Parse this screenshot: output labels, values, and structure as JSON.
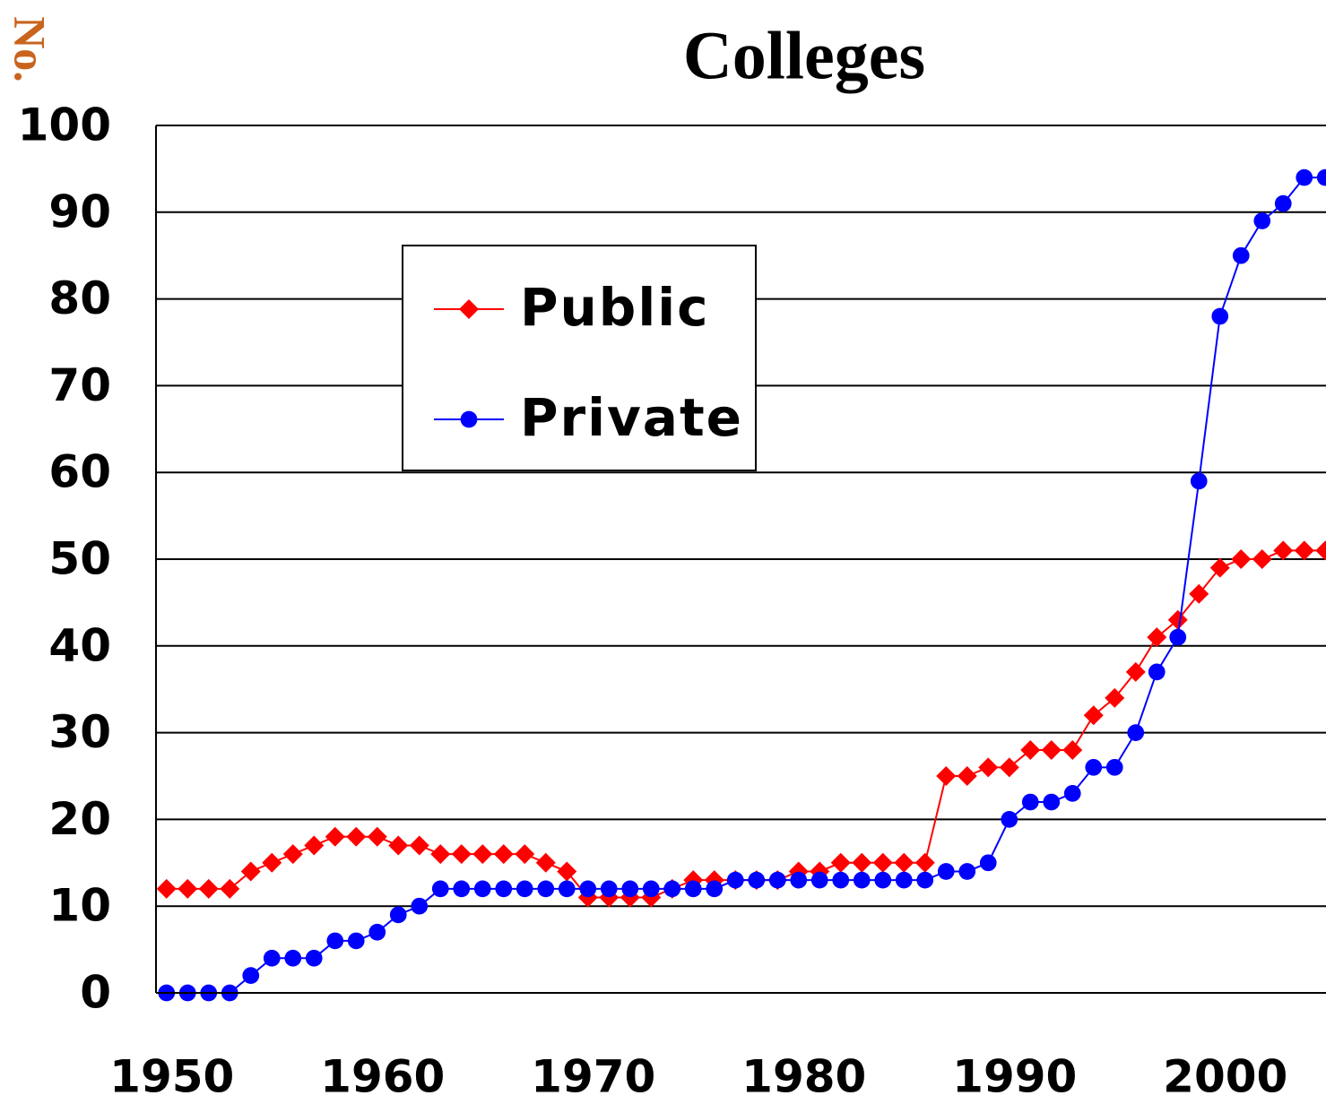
{
  "chart_data": {
    "type": "line",
    "title": "Colleges",
    "y_label": "No.",
    "x": [
      1950,
      1951,
      1952,
      1953,
      1954,
      1955,
      1956,
      1957,
      1958,
      1959,
      1960,
      1961,
      1962,
      1963,
      1964,
      1965,
      1966,
      1967,
      1968,
      1969,
      1970,
      1971,
      1972,
      1973,
      1974,
      1975,
      1976,
      1977,
      1978,
      1979,
      1980,
      1981,
      1982,
      1983,
      1984,
      1985,
      1986,
      1987,
      1988,
      1989,
      1990,
      1991,
      1992,
      1993,
      1994,
      1995,
      1996,
      1997,
      1998,
      1999,
      2000,
      2001,
      2002,
      2003,
      2004,
      2005
    ],
    "series": [
      {
        "name": "Public",
        "color": "#ff0000",
        "marker": "diamond",
        "values": [
          12,
          12,
          12,
          12,
          14,
          15,
          16,
          17,
          18,
          18,
          18,
          17,
          17,
          16,
          16,
          16,
          16,
          16,
          15,
          14,
          11,
          11,
          11,
          11,
          12,
          13,
          13,
          13,
          13,
          13,
          14,
          14,
          15,
          15,
          15,
          15,
          15,
          25,
          25,
          26,
          26,
          28,
          28,
          28,
          32,
          34,
          37,
          41,
          43,
          46,
          49,
          50,
          50,
          51,
          51,
          51
        ]
      },
      {
        "name": "Private",
        "color": "#0000ff",
        "marker": "circle",
        "values": [
          0,
          0,
          0,
          0,
          2,
          4,
          4,
          4,
          6,
          6,
          7,
          9,
          10,
          12,
          12,
          12,
          12,
          12,
          12,
          12,
          12,
          12,
          12,
          12,
          12,
          12,
          12,
          13,
          13,
          13,
          13,
          13,
          13,
          13,
          13,
          13,
          13,
          14,
          14,
          15,
          20,
          22,
          22,
          23,
          26,
          26,
          30,
          37,
          41,
          59,
          78,
          85,
          89,
          91,
          94,
          94
        ]
      }
    ],
    "xlim": [
      1949.5,
      2005.5
    ],
    "xticks": [
      1950,
      1960,
      1970,
      1980,
      1990,
      2000
    ],
    "ylim": [
      0,
      100
    ],
    "yticks": [
      0,
      10,
      20,
      30,
      40,
      50,
      60,
      70,
      80,
      90,
      100
    ],
    "grid": true
  }
}
